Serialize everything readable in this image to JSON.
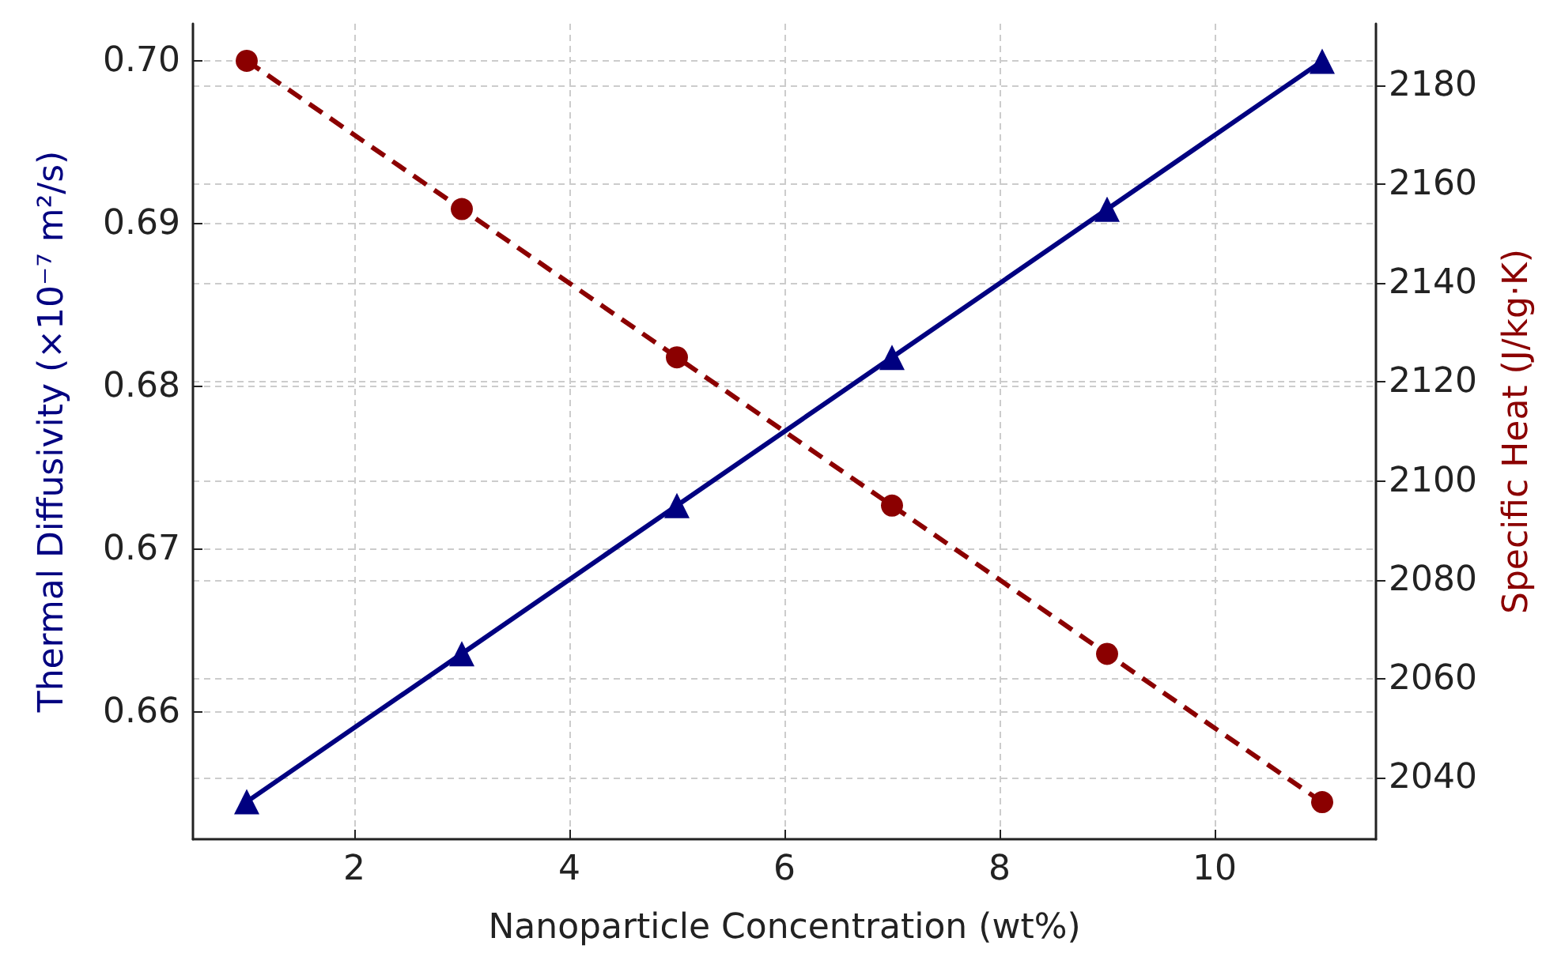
{
  "chart_data": {
    "type": "line",
    "xlabel": "Nanoparticle Concentration (wt%)",
    "ylabel": "Thermal Diffusivity (×10⁻⁷ m²/s)",
    "y2label": "Specific Heat (J/kg·K)",
    "x": [
      1,
      3,
      5,
      7,
      9,
      11
    ],
    "series": [
      {
        "color": "#000080",
        "values": [
          0.6545,
          0.6636,
          0.6727,
          0.6818,
          0.6909,
          0.7
        ],
        "marker": "triangle",
        "line_style": "solid"
      },
      {
        "color": "#8b0000",
        "values": [
          2185,
          2155,
          2125,
          2095,
          2065,
          2035
        ],
        "marker": "circle",
        "line_style": "dashed",
        "axis": "y2"
      }
    ],
    "xlim": [
      0.5,
      11.5
    ],
    "xticks": [
      2,
      4,
      6,
      8,
      10
    ],
    "ylim": [
      0.6522,
      0.7023
    ],
    "yticks": [
      0.66,
      0.67,
      0.68,
      0.69,
      {
        "value": 0.7,
        "label": "0.70"
      }
    ],
    "y2lim": [
      2027.5,
      2192.5
    ],
    "y2ticks": [
      2040,
      2060,
      2080,
      2100,
      2120,
      2140,
      2160,
      2180
    ],
    "grid": true
  }
}
